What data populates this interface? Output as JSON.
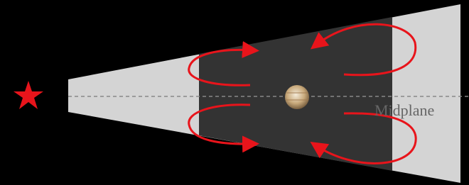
{
  "labels": {
    "midplane": "Midplane"
  }
}
